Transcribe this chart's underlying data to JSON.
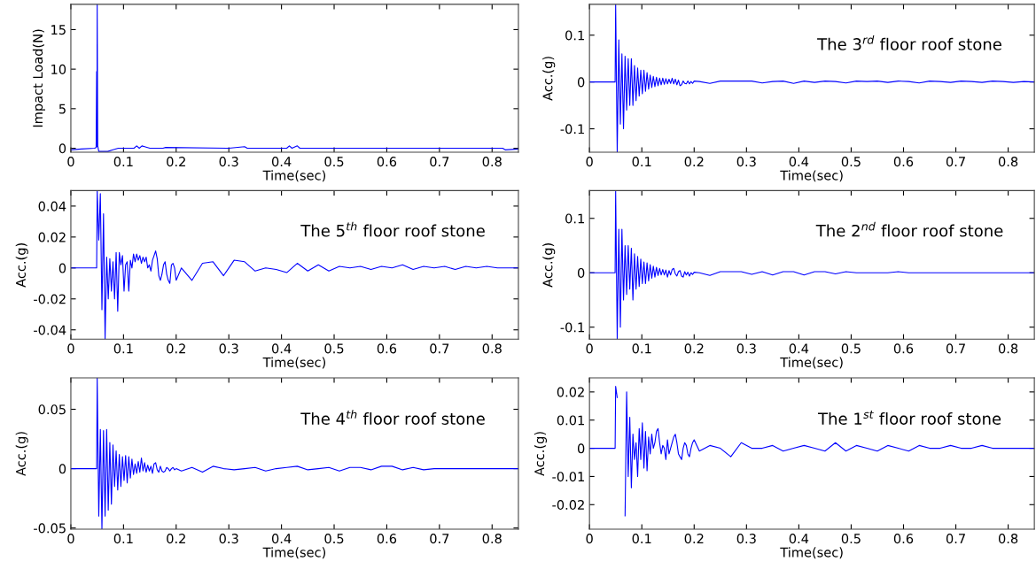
{
  "chart_data": [
    {
      "type": "line",
      "xlabel": "Time(sec)",
      "ylabel": "Impact Load(N)",
      "xlim": [
        0,
        0.85
      ],
      "ylim": [
        -0.5,
        18.2
      ],
      "xticks": [
        0,
        0.1,
        0.2,
        0.3,
        0.4,
        0.5,
        0.6,
        0.7,
        0.8
      ],
      "yticks": [
        0,
        5,
        10,
        15
      ],
      "grid": false,
      "legend": false,
      "marker": "none",
      "line_style": "solid",
      "series": [
        {
          "color": "#0000ff",
          "x": [
            0,
            0.02,
            0.045,
            0.048,
            0.049,
            0.0495,
            0.05,
            0.051,
            0.053,
            0.07,
            0.08,
            0.09,
            0.12,
            0.125,
            0.13,
            0.135,
            0.14,
            0.15,
            0.175,
            0.18,
            0.3,
            0.33,
            0.335,
            0.41,
            0.415,
            0.42,
            0.43,
            0.435,
            0.82,
            0.825,
            0.85
          ],
          "values": [
            -0.2,
            -0.1,
            0,
            0.1,
            9.7,
            0.2,
            18.2,
            0.3,
            -0.4,
            -0.4,
            -0.2,
            0,
            0,
            0.3,
            0,
            0.3,
            0.2,
            0,
            0,
            0.1,
            0,
            0.2,
            0,
            0,
            0.3,
            0,
            0.3,
            0,
            0,
            -0.2,
            -0.1
          ]
        }
      ]
    },
    {
      "type": "line",
      "xlabel": "Time(sec)",
      "ylabel": "Acc.(g)",
      "annotations": [
        "The 3$^{rd}$ floor roof stone"
      ],
      "xlim": [
        0,
        0.85
      ],
      "ylim": [
        -0.15,
        0.166
      ],
      "xticks": [
        0,
        0.1,
        0.2,
        0.3,
        0.4,
        0.5,
        0.6,
        0.7,
        0.8
      ],
      "yticks": [
        -0.1,
        0,
        0.1
      ],
      "grid": false,
      "legend": false,
      "marker": "none",
      "line_style": "solid",
      "x": [
        0,
        0.02,
        0.049,
        0.05,
        0.053,
        0.056,
        0.059,
        0.062,
        0.065,
        0.068,
        0.071,
        0.074,
        0.077,
        0.08,
        0.083,
        0.086,
        0.089,
        0.092,
        0.095,
        0.098,
        0.101,
        0.104,
        0.107,
        0.11,
        0.113,
        0.116,
        0.119,
        0.122,
        0.125,
        0.128,
        0.131,
        0.134,
        0.137,
        0.14,
        0.143,
        0.146,
        0.149,
        0.152,
        0.155,
        0.158,
        0.161,
        0.164,
        0.167,
        0.17,
        0.173,
        0.176,
        0.179,
        0.182,
        0.185,
        0.188,
        0.191,
        0.194,
        0.197,
        0.2,
        0.21,
        0.23,
        0.25,
        0.27,
        0.29,
        0.31,
        0.33,
        0.35,
        0.37,
        0.39,
        0.41,
        0.43,
        0.45,
        0.47,
        0.49,
        0.51,
        0.53,
        0.55,
        0.57,
        0.59,
        0.61,
        0.63,
        0.65,
        0.67,
        0.69,
        0.71,
        0.73,
        0.75,
        0.77,
        0.79,
        0.81,
        0.83,
        0.85
      ],
      "series": [
        {
          "color": "#0000ff",
          "values": [
            0,
            0,
            0,
            0.166,
            -0.15,
            0.09,
            -0.09,
            0.06,
            -0.1,
            0.055,
            -0.06,
            0.05,
            -0.05,
            0.05,
            -0.05,
            0.035,
            -0.04,
            0.03,
            -0.03,
            0.025,
            -0.025,
            0.025,
            -0.02,
            0.02,
            -0.015,
            0.015,
            -0.012,
            0.012,
            -0.01,
            0.01,
            -0.008,
            0.008,
            -0.006,
            0.008,
            -0.005,
            0.007,
            -0.004,
            0.006,
            -0.003,
            0.008,
            -0.004,
            0.006,
            -0.006,
            0.004,
            -0.008,
            -0.006,
            0.002,
            -0.003,
            -0.004,
            0.002,
            -0.004,
            0.001,
            -0.003,
            0.002,
            0.001,
            -0.003,
            0.002,
            0.002,
            0.002,
            0.002,
            -0.002,
            0.001,
            0.002,
            -0.003,
            0.002,
            -0.001,
            0.002,
            0.001,
            -0.002,
            0.002,
            0.001,
            0.002,
            -0.001,
            0.002,
            0.001,
            -0.002,
            0.002,
            0.001,
            -0.001,
            0.002,
            0.001,
            -0.001,
            0.002,
            0.001,
            -0.001,
            0.001,
            0
          ]
        }
      ]
    },
    {
      "type": "line",
      "xlabel": "Time(sec)",
      "ylabel": "Acc.(g)",
      "annotations": [
        "The 5$^{th}$ floor roof stone"
      ],
      "xlim": [
        0,
        0.85
      ],
      "ylim": [
        -0.046,
        0.05
      ],
      "xticks": [
        0,
        0.1,
        0.2,
        0.3,
        0.4,
        0.5,
        0.6,
        0.7,
        0.8
      ],
      "yticks": [
        -0.04,
        -0.02,
        0,
        0.02,
        0.04
      ],
      "grid": false,
      "legend": false,
      "marker": "none",
      "line_style": "solid",
      "x": [
        0,
        0.02,
        0.049,
        0.05,
        0.053,
        0.056,
        0.059,
        0.062,
        0.065,
        0.068,
        0.071,
        0.074,
        0.077,
        0.08,
        0.083,
        0.086,
        0.089,
        0.092,
        0.095,
        0.098,
        0.101,
        0.104,
        0.107,
        0.11,
        0.113,
        0.116,
        0.119,
        0.122,
        0.125,
        0.128,
        0.131,
        0.134,
        0.137,
        0.14,
        0.143,
        0.146,
        0.149,
        0.152,
        0.155,
        0.158,
        0.161,
        0.164,
        0.167,
        0.17,
        0.173,
        0.176,
        0.179,
        0.182,
        0.185,
        0.188,
        0.191,
        0.194,
        0.197,
        0.2,
        0.21,
        0.23,
        0.25,
        0.27,
        0.29,
        0.31,
        0.33,
        0.35,
        0.37,
        0.39,
        0.41,
        0.43,
        0.45,
        0.47,
        0.49,
        0.51,
        0.53,
        0.55,
        0.57,
        0.59,
        0.61,
        0.63,
        0.65,
        0.67,
        0.69,
        0.71,
        0.73,
        0.75,
        0.77,
        0.79,
        0.81,
        0.83,
        0.85
      ],
      "series": [
        {
          "color": "#0000ff",
          "values": [
            0,
            0,
            0,
            0.05,
            0.018,
            0.048,
            -0.027,
            0.035,
            -0.046,
            0.007,
            -0.02,
            0.006,
            -0.015,
            0.004,
            -0.02,
            0.01,
            -0.028,
            0.01,
            0.002,
            0.008,
            -0.015,
            0.002,
            0.004,
            -0.015,
            0.005,
            0,
            0.009,
            0.004,
            0.009,
            0.005,
            0.008,
            0.003,
            0.007,
            0.004,
            0.007,
            0,
            0.002,
            -0.002,
            0.005,
            0.008,
            0.011,
            0.006,
            -0.005,
            -0.008,
            -0.004,
            0.002,
            0.004,
            -0.004,
            -0.008,
            -0.01,
            0.002,
            0.003,
            0,
            -0.008,
            0,
            -0.008,
            0.003,
            0.004,
            -0.005,
            0.005,
            0.004,
            -0.002,
            0,
            -0.001,
            -0.003,
            0.003,
            -0.002,
            0.002,
            -0.002,
            0.001,
            0,
            0.001,
            -0.001,
            0.001,
            0,
            0.002,
            -0.001,
            0.001,
            0,
            0.001,
            -0.001,
            0.001,
            0,
            0.001,
            0,
            0,
            0
          ]
        }
      ]
    },
    {
      "type": "line",
      "xlabel": "Time(sec)",
      "ylabel": "Acc.(g)",
      "annotations": [
        "The 2$^{nd}$ floor roof stone"
      ],
      "xlim": [
        0,
        0.85
      ],
      "ylim": [
        -0.122,
        0.151
      ],
      "xticks": [
        0,
        0.1,
        0.2,
        0.3,
        0.4,
        0.5,
        0.6,
        0.7,
        0.8
      ],
      "yticks": [
        -0.1,
        0,
        0.1
      ],
      "grid": false,
      "legend": false,
      "marker": "none",
      "line_style": "solid",
      "x": [
        0,
        0.02,
        0.049,
        0.05,
        0.053,
        0.056,
        0.059,
        0.062,
        0.065,
        0.068,
        0.071,
        0.074,
        0.077,
        0.08,
        0.083,
        0.086,
        0.089,
        0.092,
        0.095,
        0.098,
        0.101,
        0.104,
        0.107,
        0.11,
        0.113,
        0.116,
        0.119,
        0.122,
        0.125,
        0.128,
        0.131,
        0.134,
        0.137,
        0.14,
        0.143,
        0.146,
        0.149,
        0.152,
        0.155,
        0.158,
        0.161,
        0.164,
        0.167,
        0.17,
        0.173,
        0.176,
        0.179,
        0.182,
        0.185,
        0.188,
        0.191,
        0.194,
        0.197,
        0.2,
        0.21,
        0.23,
        0.25,
        0.27,
        0.29,
        0.31,
        0.33,
        0.35,
        0.37,
        0.39,
        0.41,
        0.43,
        0.45,
        0.47,
        0.49,
        0.51,
        0.53,
        0.55,
        0.57,
        0.59,
        0.61,
        0.63,
        0.65,
        0.67,
        0.69,
        0.71,
        0.73,
        0.75,
        0.77,
        0.79,
        0.81,
        0.83,
        0.85
      ],
      "series": [
        {
          "color": "#0000ff",
          "values": [
            0,
            0,
            0,
            0.151,
            -0.122,
            0.08,
            -0.1,
            0.08,
            -0.05,
            0.05,
            -0.04,
            0.05,
            -0.03,
            0.045,
            -0.05,
            0.035,
            -0.03,
            0.03,
            -0.025,
            0.025,
            -0.02,
            0.02,
            -0.02,
            0.018,
            -0.015,
            0.015,
            -0.01,
            0.012,
            -0.008,
            0.01,
            -0.005,
            0.008,
            -0.004,
            0.006,
            -0.004,
            0.005,
            -0.008,
            0.004,
            -0.004,
            0.006,
            0.008,
            -0.002,
            -0.006,
            0.002,
            0.004,
            -0.006,
            -0.008,
            0.002,
            -0.004,
            0.001,
            -0.006,
            0,
            -0.003,
            0.001,
            0,
            -0.005,
            0.002,
            0.002,
            0.002,
            -0.003,
            0.002,
            -0.004,
            0.002,
            0.002,
            -0.004,
            0.002,
            0.002,
            -0.002,
            0.002,
            0,
            0,
            0,
            0,
            0.002,
            0,
            0,
            0,
            0,
            0,
            0,
            0,
            0,
            0,
            0,
            0,
            0,
            0
          ]
        }
      ]
    },
    {
      "type": "line",
      "xlabel": "Time(sec)",
      "ylabel": "Acc.(g)",
      "annotations": [
        "The 4$^{th}$ floor roof stone"
      ],
      "xlim": [
        0,
        0.85
      ],
      "ylim": [
        -0.051,
        0.0765
      ],
      "xticks": [
        0,
        0.1,
        0.2,
        0.3,
        0.4,
        0.5,
        0.6,
        0.7,
        0.8
      ],
      "yticks": [
        -0.05,
        0,
        0.05
      ],
      "grid": false,
      "legend": false,
      "marker": "none",
      "line_style": "solid",
      "x": [
        0,
        0.02,
        0.049,
        0.05,
        0.053,
        0.056,
        0.059,
        0.062,
        0.065,
        0.068,
        0.071,
        0.074,
        0.077,
        0.08,
        0.083,
        0.086,
        0.089,
        0.092,
        0.095,
        0.098,
        0.101,
        0.104,
        0.107,
        0.11,
        0.113,
        0.116,
        0.119,
        0.122,
        0.125,
        0.128,
        0.131,
        0.134,
        0.137,
        0.14,
        0.143,
        0.146,
        0.149,
        0.152,
        0.155,
        0.158,
        0.161,
        0.164,
        0.167,
        0.17,
        0.173,
        0.176,
        0.179,
        0.182,
        0.185,
        0.188,
        0.191,
        0.194,
        0.197,
        0.2,
        0.21,
        0.23,
        0.25,
        0.27,
        0.29,
        0.31,
        0.33,
        0.35,
        0.37,
        0.39,
        0.41,
        0.43,
        0.45,
        0.47,
        0.49,
        0.51,
        0.53,
        0.55,
        0.57,
        0.59,
        0.61,
        0.63,
        0.65,
        0.67,
        0.69,
        0.71,
        0.73,
        0.75,
        0.77,
        0.79,
        0.81,
        0.83,
        0.85
      ],
      "series": [
        {
          "color": "#0000ff",
          "values": [
            0,
            0,
            0,
            0.0765,
            -0.04,
            0.033,
            -0.051,
            0.032,
            -0.04,
            0.033,
            -0.035,
            0.022,
            -0.03,
            0.02,
            -0.015,
            0.015,
            -0.018,
            0.012,
            -0.015,
            0.01,
            -0.01,
            0.011,
            -0.012,
            0.01,
            -0.008,
            0.008,
            -0.005,
            0.004,
            -0.004,
            0.006,
            -0.003,
            0.009,
            -0.002,
            0.005,
            -0.003,
            0.003,
            -0.002,
            0.002,
            -0.004,
            0.004,
            0.005,
            -0.001,
            -0.003,
            0.002,
            -0.002,
            -0.003,
            -0.002,
            0.001,
            0,
            -0.002,
            0,
            0.001,
            -0.001,
            0,
            -0.002,
            0.001,
            -0.003,
            0.002,
            0,
            -0.001,
            0,
            0.001,
            -0.002,
            0,
            0.001,
            0.002,
            -0.001,
            0,
            0.001,
            -0.002,
            0.001,
            0.001,
            -0.001,
            0.002,
            0.002,
            -0.001,
            0.001,
            -0.001,
            0,
            0,
            0,
            0,
            0,
            0,
            0,
            0,
            0
          ]
        }
      ]
    },
    {
      "type": "line",
      "xlabel": "Time(sec)",
      "ylabel": "Acc.(g)",
      "annotations": [
        "The 1$^{st}$ floor roof stone"
      ],
      "xlim": [
        0,
        0.85
      ],
      "ylim": [
        -0.0287,
        0.025
      ],
      "xticks": [
        0,
        0.1,
        0.2,
        0.3,
        0.4,
        0.5,
        0.6,
        0.7,
        0.8
      ],
      "yticks": [
        -0.02,
        -0.01,
        0,
        0.01,
        0.02
      ],
      "grid": false,
      "legend": false,
      "marker": "none",
      "line_style": "solid",
      "x": [
        0,
        0.02,
        0.049,
        0.05,
        0.053,
        0.056,
        0.059,
        0.062,
        0.065,
        0.068,
        0.071,
        0.074,
        0.077,
        0.08,
        0.083,
        0.086,
        0.089,
        0.092,
        0.095,
        0.098,
        0.101,
        0.104,
        0.107,
        0.11,
        0.113,
        0.116,
        0.119,
        0.122,
        0.125,
        0.128,
        0.131,
        0.134,
        0.137,
        0.14,
        0.143,
        0.146,
        0.149,
        0.152,
        0.155,
        0.158,
        0.161,
        0.164,
        0.167,
        0.17,
        0.173,
        0.176,
        0.179,
        0.182,
        0.185,
        0.188,
        0.191,
        0.194,
        0.197,
        0.2,
        0.21,
        0.23,
        0.25,
        0.27,
        0.29,
        0.31,
        0.33,
        0.35,
        0.37,
        0.39,
        0.41,
        0.43,
        0.45,
        0.47,
        0.49,
        0.51,
        0.53,
        0.55,
        0.57,
        0.59,
        0.61,
        0.63,
        0.65,
        0.67,
        0.69,
        0.71,
        0.73,
        0.75,
        0.77,
        0.79,
        0.81,
        0.83,
        0.85
      ],
      "series": [
        {
          "color": "#0000ff",
          "values": [
            0,
            0,
            0,
            0.022,
            0.018,
            null,
            null,
            null,
            null,
            -0.024,
            0.02,
            -0.01,
            0.011,
            -0.014,
            0.005,
            -0.004,
            0.002,
            -0.01,
            0.007,
            -0.004,
            0.009,
            -0.007,
            0.006,
            -0.008,
            0.004,
            -0.002,
            0.005,
            0,
            0.002,
            0.006,
            0.007,
            0.002,
            -0.002,
            0.001,
            0,
            -0.004,
            0.003,
            -0.002,
            0,
            0.002,
            0.004,
            0.005,
            0.002,
            -0.002,
            -0.003,
            -0.004,
            0,
            0.002,
            0.001,
            -0.002,
            -0.003,
            0,
            0.002,
            0.003,
            -0.001,
            0.001,
            0,
            -0.003,
            0.002,
            0,
            0,
            0.001,
            -0.001,
            0,
            0.001,
            0,
            -0.001,
            0.002,
            -0.001,
            0.001,
            0,
            -0.001,
            0.001,
            0,
            -0.001,
            0.001,
            0,
            0,
            0.001,
            0,
            0,
            0.001,
            0,
            0,
            0,
            0,
            0
          ]
        }
      ]
    }
  ]
}
